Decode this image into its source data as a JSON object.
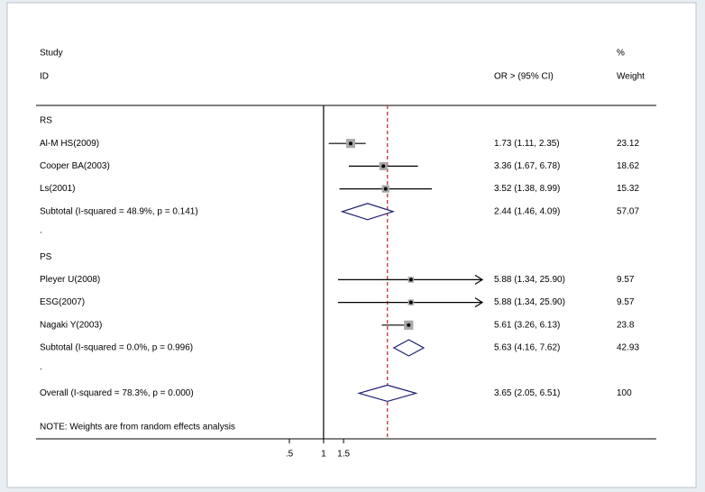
{
  "chart_data": {
    "type": "forest",
    "header": {
      "study": "Study",
      "id": "ID",
      "effect": "OR > (95% CI)",
      "weight_top": "%",
      "weight": "Weight"
    },
    "groups": [
      {
        "name": "RS",
        "studies": [
          {
            "name": "Al-M HS(2009)",
            "or": 1.73,
            "lower": 1.11,
            "upper": 2.35,
            "label": "1.73 (1.11, 2.35)",
            "weight": 23.12
          },
          {
            "name": "Cooper BA(2003)",
            "or": 3.36,
            "lower": 1.67,
            "upper": 6.78,
            "label": "3.36 (1.67, 6.78)",
            "weight": 18.62
          },
          {
            "name": "Ls(2001)",
            "or": 3.52,
            "lower": 1.38,
            "upper": 8.99,
            "label": "3.52 (1.38, 8.99)",
            "weight": 15.32
          }
        ],
        "subtotal": {
          "name": "Subtotal  (I-squared = 48.9%, p = 0.141)",
          "or": 2.44,
          "lower": 1.46,
          "upper": 4.09,
          "label": "2.44 (1.46, 4.09)",
          "weight": 57.07
        },
        "gap": "."
      },
      {
        "name": "PS",
        "studies": [
          {
            "name": "Pleyer U(2008)",
            "or": 5.88,
            "lower": 1.34,
            "upper": 25.9,
            "label": "5.88 (1.34, 25.90)",
            "weight": 9.57
          },
          {
            "name": "ESG(2007)",
            "or": 5.88,
            "lower": 1.34,
            "upper": 25.9,
            "label": "5.88 (1.34, 25.90)",
            "weight": 9.57
          },
          {
            "name": "Nagaki Y(2003)",
            "or": 5.61,
            "lower": 3.26,
            "upper": 6.13,
            "label": "5.61 (3.26, 6.13)",
            "weight": 23.8
          }
        ],
        "subtotal": {
          "name": "Subtotal  (I-squared = 0.0%, p = 0.996)",
          "or": 5.63,
          "lower": 4.16,
          "upper": 7.62,
          "label": "5.63 (4.16, 7.62)",
          "weight": 42.93
        },
        "gap": "."
      }
    ],
    "overall": {
      "name": "Overall  (I-squared = 78.3%, p = 0.000)",
      "or": 3.65,
      "lower": 2.05,
      "upper": 6.51,
      "label": "3.65 (2.05, 6.51)",
      "weight": 100.0
    },
    "note": "NOTE: Weights are from random effects analysis",
    "xscale": "log",
    "xlim": [
      0.5,
      25
    ],
    "xticks": [
      {
        "value": 0.5,
        "label": ".5"
      },
      1,
      {
        "value": 1.5,
        "label": "1.5"
      }
    ],
    "null_line": 1,
    "box_color": "#a8a8a8",
    "diamond_color": "#1c1c70",
    "overall_line_color": "#c0202a"
  }
}
